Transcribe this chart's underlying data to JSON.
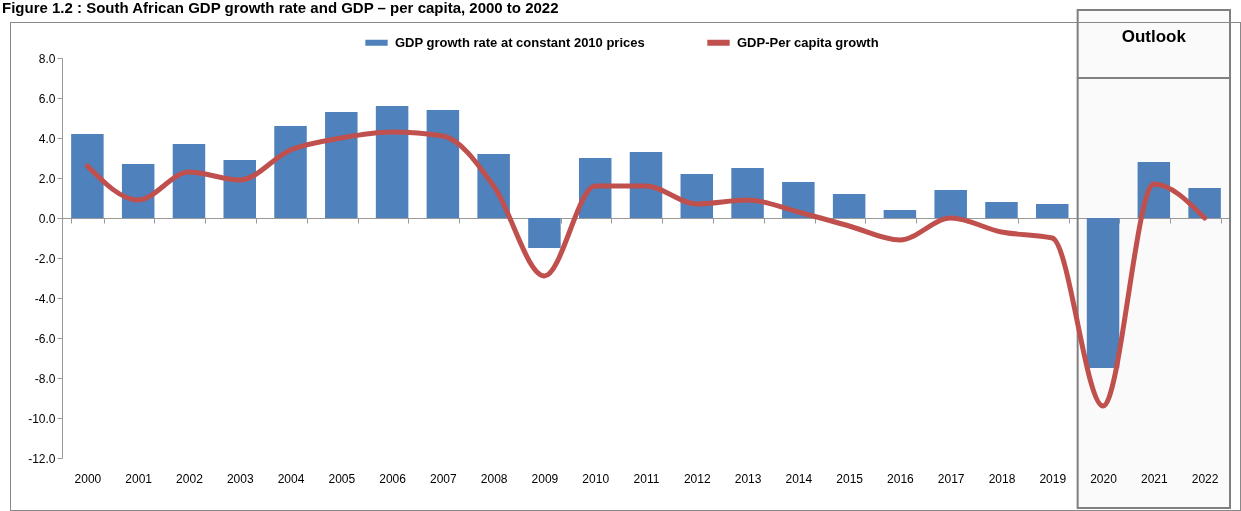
{
  "chart_data": {
    "type": "bar",
    "title": "Figure 1.2 : South African GDP growth rate and GDP – per capita, 2000 to 2022",
    "categories": [
      "2000",
      "2001",
      "2002",
      "2003",
      "2004",
      "2005",
      "2006",
      "2007",
      "2008",
      "2009",
      "2010",
      "2011",
      "2012",
      "2013",
      "2014",
      "2015",
      "2016",
      "2017",
      "2018",
      "2019",
      "2020",
      "2021",
      "2022"
    ],
    "series": [
      {
        "name": "GDP growth rate at constant 2010 prices",
        "color": "#4f81bd",
        "values": [
          4.2,
          2.7,
          3.7,
          2.9,
          4.6,
          5.3,
          5.6,
          5.4,
          3.2,
          -1.5,
          3.0,
          3.3,
          2.2,
          2.5,
          1.8,
          1.2,
          0.4,
          1.4,
          0.8,
          0.7,
          -7.5,
          2.8,
          1.5
        ]
      },
      {
        "name": "GDP-Per capita growth",
        "type": "line",
        "color": "#c0504d",
        "values": [
          2.6,
          0.9,
          2.3,
          1.9,
          3.4,
          4.0,
          4.3,
          4.1,
          1.6,
          -2.9,
          1.6,
          1.6,
          0.7,
          0.9,
          0.3,
          -0.4,
          -1.1,
          0.0,
          -0.7,
          -1.0,
          -9.4,
          1.7,
          0.0
        ]
      }
    ],
    "ylim": [
      -12,
      8
    ],
    "yticks": [
      {
        "value": -12,
        "label": "-12.0"
      },
      {
        "value": -10,
        "label": "-10.0"
      },
      {
        "value": -8,
        "label": "-8.0"
      },
      {
        "value": -6,
        "label": "-6.0"
      },
      {
        "value": -4,
        "label": "-4.0"
      },
      {
        "value": -2,
        "label": "-2.0"
      },
      {
        "value": 0,
        "label": "0.0"
      },
      {
        "value": 2,
        "label": "2.0"
      },
      {
        "value": 4,
        "label": "4.0"
      },
      {
        "value": 6,
        "label": "6.0"
      },
      {
        "value": 8,
        "label": "8.0"
      }
    ],
    "bands": [
      {
        "axis": "x",
        "from": "2020",
        "to": "2022",
        "label": "Outlook",
        "color": "#808080"
      }
    ],
    "legend": "top",
    "marker": "none",
    "line_style": "solid"
  }
}
